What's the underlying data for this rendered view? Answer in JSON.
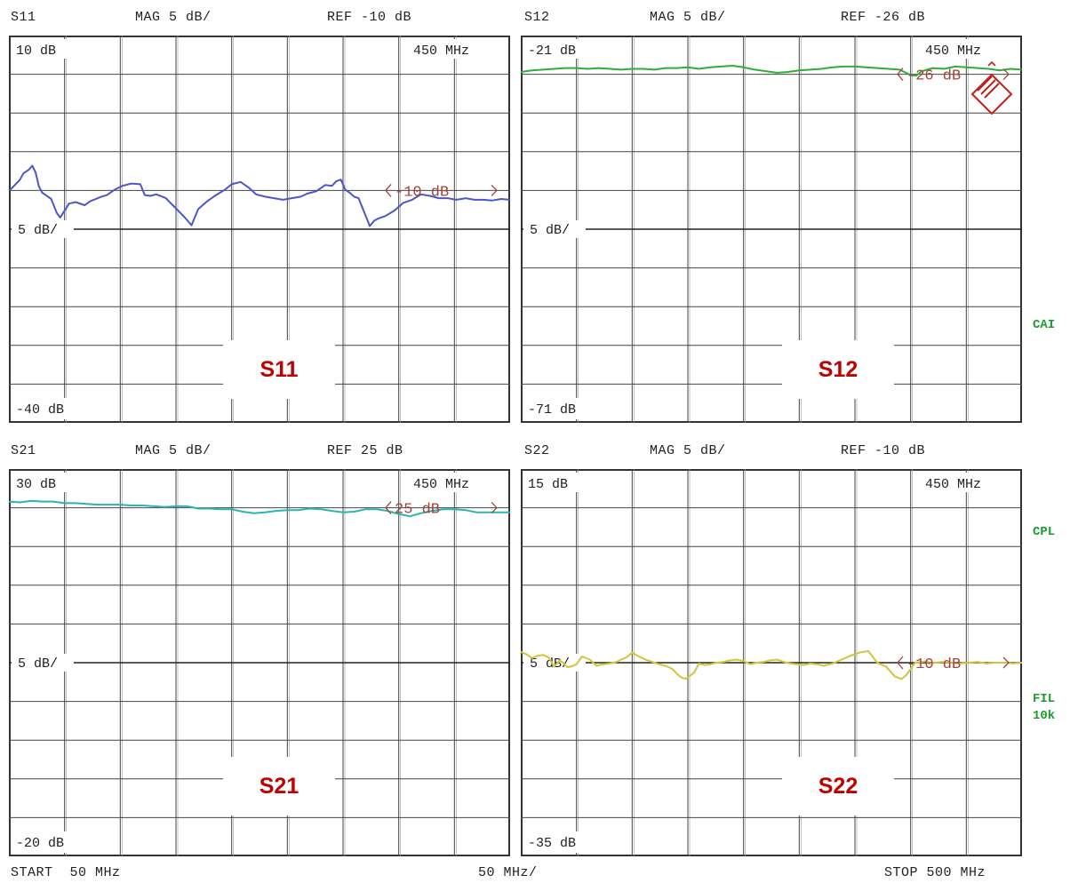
{
  "chart_data": [
    {
      "type": "line",
      "title": "S11",
      "scale": "MAG 5 dB/",
      "reference": "REF -10 dB",
      "top_label": "10 dB",
      "bottom_label": "-40 dB",
      "mid_label": "5 dB/",
      "freq_label": "450 MHz",
      "ref_marker": "-10 dB",
      "tag": "S11",
      "ylim": [
        -40,
        10
      ],
      "xlim": [
        50,
        500
      ],
      "ref_value": -10,
      "color": "#4a58c8",
      "series": [
        {
          "x": [
            50,
            52,
            56,
            60,
            63,
            68,
            71,
            74,
            77,
            80,
            83,
            88,
            93,
            96,
            100,
            104,
            110,
            118,
            123,
            128,
            133,
            138,
            145,
            152,
            160,
            168,
            172,
            177,
            182,
            186,
            191,
            195,
            200,
            208,
            214,
            220,
            228,
            236,
            244,
            250,
            258,
            265,
            272,
            280,
            288,
            296,
            304,
            312,
            318,
            326,
            334,
            340,
            344,
            348,
            352,
            356,
            360,
            364,
            369,
            374,
            378,
            382,
            388,
            396,
            404,
            412,
            420,
            428,
            436,
            444,
            452,
            460,
            468,
            476,
            484,
            492,
            500
          ],
          "y": [
            -10,
            -9.8,
            -9.2,
            -8.6,
            -7.8,
            -7.3,
            -6.8,
            -7.7,
            -9.5,
            -10.3,
            -10.6,
            -11.1,
            -12.9,
            -13.5,
            -12.6,
            -11.7,
            -11.5,
            -11.9,
            -11.4,
            -11.1,
            -10.8,
            -10.6,
            -9.9,
            -9.4,
            -9.1,
            -9.2,
            -10.6,
            -10.7,
            -10.5,
            -10.7,
            -11.0,
            -11.6,
            -12.3,
            -13.5,
            -14.5,
            -12.4,
            -11.4,
            -10.6,
            -9.9,
            -9.2,
            -8.9,
            -9.6,
            -10.5,
            -10.8,
            -11.0,
            -11.2,
            -11.0,
            -10.8,
            -10.4,
            -10.1,
            -9.3,
            -9.4,
            -8.8,
            -8.6,
            -9.9,
            -10.3,
            -10.8,
            -11.0,
            -12.8,
            -14.6,
            -13.9,
            -13.6,
            -13.3,
            -12.6,
            -11.6,
            -11.2,
            -10.5,
            -10.7,
            -11.0,
            -11.0,
            -11.2,
            -11.0,
            -11.2,
            -11.2,
            -11.3,
            -11.1,
            -11.2
          ]
        }
      ]
    },
    {
      "type": "line",
      "title": "S12",
      "scale": "MAG 5 dB/",
      "reference": "REF -26 dB",
      "top_label": "-21 dB",
      "bottom_label": "-71 dB",
      "mid_label": "5 dB/",
      "freq_label": "450 MHz",
      "ref_marker": "-26 dB",
      "tag": "S12",
      "ylim": [
        -71,
        -21
      ],
      "xlim": [
        50,
        500
      ],
      "ref_value": -26,
      "color": "#2fae3a",
      "series": [
        {
          "x": [
            50,
            60,
            70,
            80,
            90,
            100,
            110,
            120,
            130,
            140,
            150,
            160,
            170,
            180,
            190,
            200,
            210,
            220,
            230,
            240,
            250,
            260,
            270,
            280,
            290,
            300,
            310,
            320,
            330,
            340,
            350,
            360,
            370,
            380,
            390,
            400,
            405,
            410,
            420,
            430,
            440,
            450,
            460,
            470,
            480,
            490,
            500
          ],
          "y": [
            -25.7,
            -25.5,
            -25.4,
            -25.3,
            -25.2,
            -25.2,
            -25.3,
            -25.2,
            -25.3,
            -25.4,
            -25.3,
            -25.3,
            -25.4,
            -25.2,
            -25.2,
            -25.1,
            -25.3,
            -25.1,
            -25.0,
            -24.9,
            -25.1,
            -25.4,
            -25.6,
            -25.8,
            -25.7,
            -25.5,
            -25.4,
            -25.3,
            -25.1,
            -25.0,
            -25.0,
            -25.1,
            -25.2,
            -25.3,
            -25.4,
            -26.1,
            -26.2,
            -25.6,
            -25.2,
            -25.3,
            -25.0,
            -25.1,
            -25.2,
            -25.3,
            -25.5,
            -25.3,
            -25.4
          ]
        }
      ]
    },
    {
      "type": "line",
      "title": "S21",
      "scale": "MAG 5 dB/",
      "reference": "REF 25 dB",
      "top_label": "30 dB",
      "bottom_label": "-20 dB",
      "mid_label": "5 dB/",
      "freq_label": "450 MHz",
      "ref_marker": "25 dB",
      "tag": "S21",
      "ylim": [
        -20,
        30
      ],
      "xlim": [
        50,
        500
      ],
      "ref_value": 25,
      "color": "#2bb5b0",
      "series": [
        {
          "x": [
            50,
            60,
            70,
            80,
            90,
            100,
            110,
            120,
            130,
            140,
            150,
            160,
            170,
            180,
            190,
            200,
            210,
            220,
            230,
            240,
            250,
            260,
            270,
            280,
            290,
            300,
            310,
            320,
            330,
            340,
            350,
            360,
            370,
            380,
            390,
            400,
            410,
            420,
            430,
            440,
            450,
            460,
            470,
            480,
            490,
            500
          ],
          "y": [
            25.8,
            25.7,
            25.9,
            25.8,
            25.8,
            25.6,
            25.6,
            25.5,
            25.4,
            25.4,
            25.4,
            25.3,
            25.3,
            25.2,
            25.1,
            25.2,
            25.2,
            24.9,
            24.9,
            24.8,
            24.8,
            24.5,
            24.3,
            24.4,
            24.6,
            24.7,
            24.7,
            24.9,
            24.8,
            24.6,
            24.4,
            24.5,
            24.8,
            24.8,
            24.6,
            24.2,
            23.9,
            24.3,
            24.6,
            24.8,
            24.8,
            24.7,
            24.4,
            24.4,
            24.4,
            24.4
          ]
        }
      ]
    },
    {
      "type": "line",
      "title": "S22",
      "scale": "MAG 5 dB/",
      "reference": "REF -10 dB",
      "top_label": "15 dB",
      "bottom_label": "-35 dB",
      "mid_label": "5 dB/",
      "freq_label": "450 MHz",
      "ref_marker": "-10 dB",
      "tag": "S22",
      "ylim": [
        -35,
        15
      ],
      "xlim": [
        50,
        500
      ],
      "ref_value": -10,
      "color": "#d4c43c",
      "series": [
        {
          "x": [
            50,
            55,
            60,
            65,
            70,
            75,
            80,
            85,
            88,
            92,
            97,
            100,
            105,
            112,
            118,
            124,
            130,
            136,
            140,
            145,
            150,
            156,
            162,
            168,
            174,
            180,
            186,
            190,
            194,
            198,
            202,
            206,
            210,
            215,
            220,
            226,
            232,
            238,
            244,
            250,
            256,
            262,
            268,
            274,
            280,
            286,
            292,
            298,
            304,
            310,
            316,
            322,
            330,
            338,
            346,
            354,
            362,
            370,
            378,
            386,
            392,
            396,
            400,
            404,
            410,
            414,
            418,
            422,
            428,
            436,
            444,
            452,
            460,
            468,
            476,
            484,
            492,
            500
          ],
          "y": [
            -8.6,
            -8.9,
            -9.4,
            -9.1,
            -9.0,
            -9.3,
            -10.5,
            -9.7,
            -10.0,
            -10.6,
            -10.4,
            -10.2,
            -9.2,
            -9.6,
            -10.4,
            -10.2,
            -10.1,
            -9.9,
            -9.6,
            -9.3,
            -8.7,
            -9.2,
            -9.6,
            -9.9,
            -10.2,
            -10.4,
            -10.8,
            -11.4,
            -11.9,
            -12.1,
            -11.7,
            -11.2,
            -10.1,
            -10.3,
            -10.2,
            -10.0,
            -9.9,
            -9.7,
            -9.6,
            -9.8,
            -10.2,
            -10.0,
            -9.9,
            -9.7,
            -9.6,
            -9.9,
            -10.1,
            -10.2,
            -10.3,
            -10.1,
            -10.2,
            -10.4,
            -10.1,
            -9.6,
            -9.1,
            -8.7,
            -8.5,
            -10.0,
            -10.5,
            -11.8,
            -12.1,
            -11.6,
            -10.8,
            -10.0,
            -9.9,
            -9.8,
            -10.1,
            -10.0,
            -9.9,
            -10.0,
            -10.1,
            -10.0,
            -9.9,
            -10.1,
            -10.0,
            -10.0,
            -10.1,
            -10.0
          ]
        }
      ]
    }
  ],
  "footer": {
    "start": "START  50 MHz",
    "div": "50 MHz/",
    "stop": "STOP 500 MHz"
  },
  "side_labels": {
    "cal": "CAI",
    "cpl": "CPL",
    "fil": "FIL",
    "filv": "10k"
  }
}
